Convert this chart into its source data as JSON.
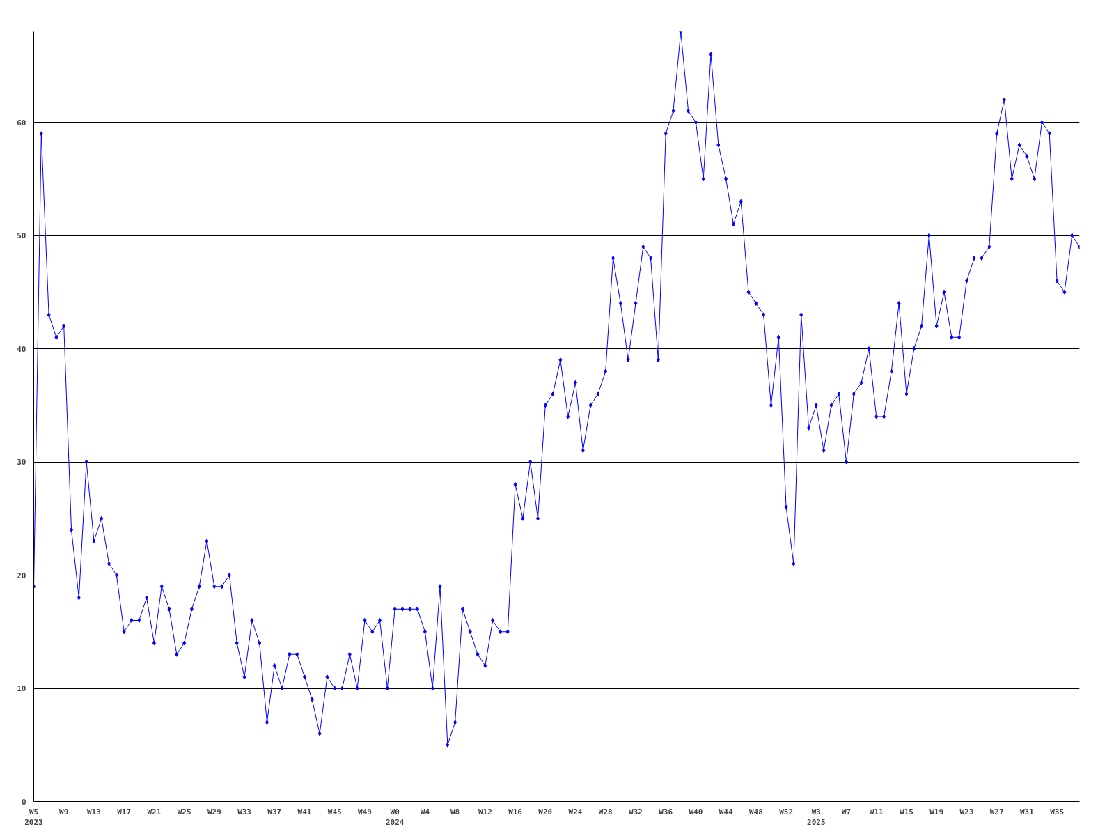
{
  "chart_data": {
    "type": "line",
    "marker": "diamond",
    "line_style": "solid",
    "grid": "y",
    "categories": [
      "W5\n2023",
      null,
      null,
      null,
      "W9",
      null,
      null,
      null,
      "W13",
      null,
      null,
      null,
      "W17",
      null,
      null,
      null,
      "W21",
      null,
      null,
      null,
      "W25",
      null,
      null,
      null,
      "W29",
      null,
      null,
      null,
      "W33",
      null,
      null,
      null,
      "W37",
      null,
      null,
      null,
      "W41",
      null,
      null,
      null,
      "W45",
      null,
      null,
      null,
      "W49",
      null,
      null,
      null,
      "W0\n2024",
      null,
      null,
      null,
      "W4",
      null,
      null,
      null,
      "W8",
      null,
      null,
      null,
      "W12",
      null,
      null,
      null,
      "W16",
      null,
      null,
      null,
      "W20",
      null,
      null,
      null,
      "W24",
      null,
      null,
      null,
      "W28",
      null,
      null,
      null,
      "W32",
      null,
      null,
      null,
      "W36",
      null,
      null,
      null,
      "W40",
      null,
      null,
      null,
      "W44",
      null,
      null,
      null,
      "W48",
      null,
      null,
      null,
      "W52",
      null,
      null,
      null,
      "W3\n2025",
      null,
      null,
      null,
      "W7",
      null,
      null,
      null,
      "W11",
      null,
      null,
      null,
      "W15",
      null,
      null,
      null,
      "W19",
      null,
      null,
      null,
      "W23",
      null,
      null,
      null,
      "W27",
      null,
      null,
      null,
      "W31",
      null,
      null,
      null,
      "W35",
      null,
      null,
      null
    ],
    "series": [
      {
        "color": "#0000ff",
        "values": [
          19,
          59,
          43,
          41,
          42,
          24,
          18,
          30,
          23,
          25,
          21,
          20,
          15,
          16,
          16,
          18,
          14,
          19,
          17,
          13,
          14,
          17,
          19,
          23,
          19,
          19,
          20,
          14,
          11,
          16,
          14,
          7,
          12,
          10,
          13,
          13,
          11,
          9,
          6,
          11,
          10,
          10,
          13,
          10,
          16,
          15,
          16,
          10,
          17,
          17,
          17,
          17,
          15,
          10,
          19,
          5,
          7,
          17,
          15,
          13,
          12,
          16,
          15,
          15,
          28,
          25,
          30,
          25,
          35,
          36,
          39,
          34,
          37,
          31,
          35,
          36,
          38,
          48,
          44,
          39,
          44,
          49,
          48,
          39,
          59,
          61,
          68,
          61,
          60,
          55,
          66,
          58,
          55,
          51,
          53,
          45,
          44,
          43,
          35,
          41,
          26,
          21,
          43,
          33,
          35,
          31,
          35,
          36,
          30,
          36,
          37,
          40,
          34,
          34,
          38,
          44,
          36,
          40,
          42,
          50,
          42,
          45,
          41,
          41,
          46,
          48,
          48,
          49,
          59,
          62,
          55,
          58,
          57,
          55,
          60,
          59,
          46,
          45,
          50,
          49
        ]
      }
    ],
    "ylim": [
      0,
      68
    ],
    "yticks": [
      0,
      10,
      20,
      30,
      40,
      50,
      60
    ]
  }
}
